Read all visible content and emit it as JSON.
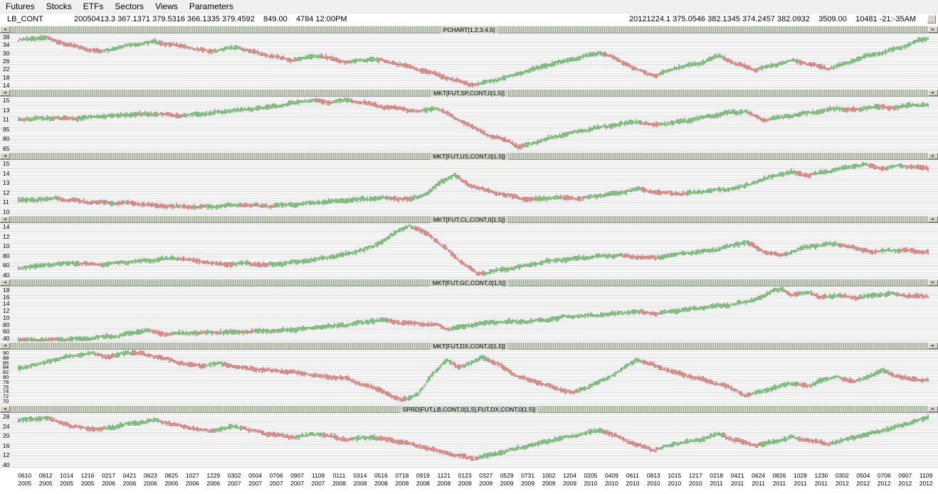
{
  "menu": {
    "items": [
      "Futures",
      "Stocks",
      "ETFs",
      "Sectors",
      "Views",
      "Parameters"
    ]
  },
  "info_bar": {
    "symbol": "LB_CONT",
    "left_text": "20050413.3 367.1371 379.5316 366.1335 379.4592    849.00    4784 12:00PM",
    "right_text": "20121224.1 375.0546 382.1345 374.2457 382.0932    3509.00    10481 -21:-35AM"
  },
  "colors": {
    "up": "#128712",
    "down": "#b82820",
    "stripe": "#e4e4e4",
    "titlebar": "#cdd3c7",
    "menu_bg": "#f0f0f0"
  },
  "chart_data": [
    {
      "id": "lb-pchart",
      "type": "line",
      "title": "PCHART[1,2,3,4,5]",
      "ylabels": [
        "38",
        "34",
        "30",
        "26",
        "22",
        "18",
        "14"
      ],
      "ymin": 135,
      "ymax": 395,
      "x": [
        0,
        0.03,
        0.06,
        0.09,
        0.12,
        0.15,
        0.18,
        0.21,
        0.24,
        0.27,
        0.3,
        0.33,
        0.36,
        0.39,
        0.42,
        0.45,
        0.48,
        0.5,
        0.53,
        0.56,
        0.59,
        0.62,
        0.64,
        0.66,
        0.68,
        0.7,
        0.72,
        0.75,
        0.77,
        0.79,
        0.81,
        0.83,
        0.85,
        0.87,
        0.89,
        0.91,
        0.93,
        0.95,
        0.97,
        0.99,
        1.0
      ],
      "v": [
        365,
        375,
        335,
        310,
        340,
        355,
        335,
        310,
        330,
        295,
        270,
        290,
        260,
        275,
        250,
        215,
        175,
        152,
        180,
        220,
        255,
        285,
        305,
        270,
        225,
        195,
        230,
        255,
        290,
        250,
        225,
        245,
        270,
        250,
        230,
        255,
        285,
        305,
        330,
        360,
        372
      ]
    },
    {
      "id": "sp",
      "type": "line",
      "title": "MKT[FUT,SP,CONT,0[1,5]]",
      "ylabels": [
        "15",
        "13",
        "11",
        "95",
        "80",
        "65"
      ],
      "ymin": 600,
      "ymax": 1600,
      "x": [
        0,
        0.03,
        0.06,
        0.09,
        0.12,
        0.15,
        0.18,
        0.21,
        0.24,
        0.27,
        0.3,
        0.32,
        0.34,
        0.36,
        0.38,
        0.4,
        0.42,
        0.44,
        0.46,
        0.48,
        0.5,
        0.52,
        0.54,
        0.55,
        0.57,
        0.59,
        0.61,
        0.63,
        0.66,
        0.68,
        0.7,
        0.72,
        0.74,
        0.76,
        0.78,
        0.8,
        0.82,
        0.84,
        0.86,
        0.88,
        0.9,
        0.92,
        0.94,
        0.96,
        0.98,
        1.0
      ],
      "v": [
        1190,
        1215,
        1205,
        1245,
        1275,
        1290,
        1255,
        1305,
        1355,
        1400,
        1480,
        1540,
        1500,
        1535,
        1490,
        1420,
        1380,
        1330,
        1390,
        1220,
        1050,
        880,
        800,
        680,
        790,
        880,
        950,
        1020,
        1100,
        1150,
        1090,
        1130,
        1180,
        1250,
        1310,
        1330,
        1180,
        1230,
        1290,
        1330,
        1390,
        1360,
        1420,
        1400,
        1440,
        1455
      ]
    },
    {
      "id": "us",
      "type": "line",
      "title": "MKT[FUT,US,CONT,0[1,5]]",
      "ylabels": [
        "15",
        "14",
        "13",
        "12",
        "11",
        "10"
      ],
      "ymin": 98,
      "ymax": 157,
      "x": [
        0,
        0.04,
        0.08,
        0.12,
        0.16,
        0.2,
        0.24,
        0.28,
        0.32,
        0.36,
        0.4,
        0.43,
        0.45,
        0.465,
        0.48,
        0.49,
        0.51,
        0.53,
        0.56,
        0.59,
        0.62,
        0.64,
        0.66,
        0.68,
        0.7,
        0.73,
        0.76,
        0.79,
        0.81,
        0.83,
        0.85,
        0.87,
        0.89,
        0.91,
        0.93,
        0.95,
        0.97,
        1.0
      ],
      "v": [
        114,
        116,
        112,
        111,
        108,
        107,
        109,
        108,
        111,
        114,
        117,
        115,
        121,
        134,
        141,
        133,
        126,
        121,
        115,
        117,
        116,
        119,
        122,
        126,
        123,
        121,
        124,
        127,
        133,
        140,
        144,
        141,
        145,
        149,
        152,
        148,
        151,
        148
      ]
    },
    {
      "id": "cl",
      "type": "line",
      "title": "MKT[FUT,CL,CONT,0[1,5]]",
      "ylabels": [
        "14",
        "12",
        "10",
        "80",
        "60",
        "40"
      ],
      "ymin": 28,
      "ymax": 152,
      "x": [
        0,
        0.03,
        0.06,
        0.09,
        0.12,
        0.15,
        0.17,
        0.19,
        0.21,
        0.23,
        0.25,
        0.27,
        0.29,
        0.31,
        0.33,
        0.35,
        0.37,
        0.39,
        0.41,
        0.43,
        0.45,
        0.47,
        0.49,
        0.505,
        0.52,
        0.54,
        0.56,
        0.58,
        0.6,
        0.62,
        0.64,
        0.66,
        0.68,
        0.7,
        0.72,
        0.74,
        0.76,
        0.78,
        0.8,
        0.82,
        0.84,
        0.86,
        0.88,
        0.9,
        0.92,
        0.94,
        0.96,
        0.98,
        1.0
      ],
      "v": [
        52,
        58,
        63,
        60,
        65,
        70,
        74,
        70,
        63,
        60,
        62,
        58,
        62,
        66,
        72,
        78,
        88,
        100,
        125,
        147,
        128,
        95,
        60,
        38,
        44,
        50,
        58,
        66,
        71,
        74,
        78,
        80,
        76,
        74,
        82,
        86,
        90,
        100,
        110,
        88,
        80,
        96,
        103,
        106,
        96,
        88,
        92,
        90,
        88
      ]
    },
    {
      "id": "gc",
      "type": "line",
      "title": "MKT[FUT,GC,CONT,0[1,5]]",
      "ylabels": [
        "18",
        "16",
        "14",
        "12",
        "10",
        "80",
        "60",
        "40"
      ],
      "ymin": 380,
      "ymax": 1950,
      "x": [
        0,
        0.04,
        0.07,
        0.09,
        0.11,
        0.13,
        0.14,
        0.16,
        0.19,
        0.22,
        0.25,
        0.28,
        0.31,
        0.33,
        0.35,
        0.37,
        0.39,
        0.4,
        0.42,
        0.44,
        0.46,
        0.47,
        0.49,
        0.51,
        0.53,
        0.56,
        0.58,
        0.6,
        0.62,
        0.64,
        0.66,
        0.68,
        0.7,
        0.72,
        0.74,
        0.76,
        0.78,
        0.8,
        0.82,
        0.83,
        0.84,
        0.85,
        0.86,
        0.87,
        0.88,
        0.9,
        0.92,
        0.94,
        0.96,
        0.98,
        1.0
      ],
      "v": [
        432,
        448,
        470,
        520,
        555,
        655,
        715,
        600,
        635,
        650,
        665,
        690,
        745,
        800,
        830,
        900,
        975,
        1010,
        930,
        905,
        865,
        740,
        820,
        905,
        935,
        965,
        1000,
        1090,
        1115,
        1145,
        1200,
        1230,
        1180,
        1245,
        1305,
        1380,
        1420,
        1510,
        1680,
        1840,
        1880,
        1700,
        1760,
        1790,
        1640,
        1700,
        1630,
        1700,
        1750,
        1690,
        1665
      ]
    },
    {
      "id": "dx",
      "type": "line",
      "title": "MKT[FUT,DX,CONT,0[1,5]]",
      "ylabels": [
        "90",
        "88",
        "86",
        "84",
        "82",
        "80",
        "78",
        "76",
        "74",
        "72",
        "70"
      ],
      "ymin": 69.5,
      "ymax": 92,
      "x": [
        0,
        0.02,
        0.04,
        0.06,
        0.08,
        0.1,
        0.12,
        0.14,
        0.16,
        0.18,
        0.2,
        0.22,
        0.25,
        0.28,
        0.31,
        0.34,
        0.36,
        0.38,
        0.4,
        0.41,
        0.42,
        0.44,
        0.455,
        0.47,
        0.485,
        0.5,
        0.51,
        0.53,
        0.55,
        0.57,
        0.59,
        0.61,
        0.63,
        0.65,
        0.665,
        0.68,
        0.7,
        0.72,
        0.74,
        0.76,
        0.78,
        0.8,
        0.81,
        0.83,
        0.85,
        0.87,
        0.88,
        0.9,
        0.92,
        0.94,
        0.95,
        0.96,
        0.98,
        1.0
      ],
      "v": [
        84.5,
        86,
        88,
        89.5,
        90.5,
        89,
        91,
        90,
        88.5,
        86.5,
        85.5,
        86.5,
        84.5,
        83.5,
        82.5,
        81,
        80.5,
        77.5,
        75.5,
        73,
        71.5,
        74,
        82,
        87.5,
        85,
        87,
        89,
        85.5,
        81,
        79,
        76.5,
        74.5,
        77.5,
        81,
        84.5,
        88,
        85.5,
        83,
        81,
        79,
        77,
        73.5,
        74.5,
        76.5,
        78.5,
        77,
        79.5,
        81,
        79,
        82,
        83.5,
        82,
        80,
        79.8
      ]
    },
    {
      "id": "sprd-lb-dx",
      "type": "line",
      "title": "SPRD[FUT,LB,CONT,0[1,5],FUT,DX,CONT,0[1,5]]",
      "ylabels": [
        "28",
        "24",
        "20",
        "16",
        "12",
        "40"
      ],
      "ymin": 70,
      "ymax": 310,
      "x": [
        0,
        0.03,
        0.06,
        0.09,
        0.12,
        0.15,
        0.18,
        0.21,
        0.24,
        0.27,
        0.3,
        0.33,
        0.36,
        0.39,
        0.42,
        0.45,
        0.48,
        0.5,
        0.53,
        0.56,
        0.59,
        0.62,
        0.64,
        0.66,
        0.68,
        0.7,
        0.72,
        0.75,
        0.77,
        0.79,
        0.81,
        0.83,
        0.85,
        0.87,
        0.89,
        0.91,
        0.93,
        0.95,
        0.97,
        0.99,
        1.0
      ],
      "v": [
        278,
        290,
        252,
        238,
        262,
        278,
        252,
        232,
        252,
        222,
        205,
        220,
        195,
        205,
        185,
        158,
        128,
        112,
        138,
        168,
        195,
        220,
        235,
        205,
        170,
        150,
        175,
        195,
        220,
        190,
        170,
        185,
        205,
        190,
        175,
        195,
        215,
        235,
        255,
        280,
        290
      ]
    }
  ],
  "x_axis": {
    "columns": [
      {
        "date": "0610",
        "year": "2005"
      },
      {
        "date": "0812",
        "year": "2005"
      },
      {
        "date": "1014",
        "year": "2005"
      },
      {
        "date": "1216",
        "year": "2005"
      },
      {
        "date": "0217",
        "year": "2006"
      },
      {
        "date": "0421",
        "year": "2006"
      },
      {
        "date": "0623",
        "year": "2006"
      },
      {
        "date": "0825",
        "year": "2006"
      },
      {
        "date": "1027",
        "year": "2006"
      },
      {
        "date": "1229",
        "year": "2006"
      },
      {
        "date": "0302",
        "year": "2007"
      },
      {
        "date": "0504",
        "year": "2007"
      },
      {
        "date": "0706",
        "year": "2007"
      },
      {
        "date": "0907",
        "year": "2007"
      },
      {
        "date": "1109",
        "year": "2007"
      },
      {
        "date": "0111",
        "year": "2008"
      },
      {
        "date": "0314",
        "year": "2008"
      },
      {
        "date": "0516",
        "year": "2008"
      },
      {
        "date": "0718",
        "year": "2008"
      },
      {
        "date": "0919",
        "year": "2008"
      },
      {
        "date": "1121",
        "year": "2008"
      },
      {
        "date": "0123",
        "year": "2009"
      },
      {
        "date": "0327",
        "year": "2009"
      },
      {
        "date": "0529",
        "year": "2009"
      },
      {
        "date": "0731",
        "year": "2009"
      },
      {
        "date": "1002",
        "year": "2009"
      },
      {
        "date": "1204",
        "year": "2009"
      },
      {
        "date": "0205",
        "year": "2010"
      },
      {
        "date": "0409",
        "year": "2010"
      },
      {
        "date": "0611",
        "year": "2010"
      },
      {
        "date": "0813",
        "year": "2010"
      },
      {
        "date": "1015",
        "year": "2010"
      },
      {
        "date": "1217",
        "year": "2010"
      },
      {
        "date": "0218",
        "year": "2011"
      },
      {
        "date": "0421",
        "year": "2011"
      },
      {
        "date": "0624",
        "year": "2011"
      },
      {
        "date": "0826",
        "year": "2011"
      },
      {
        "date": "1028",
        "year": "2011"
      },
      {
        "date": "1230",
        "year": "2011"
      },
      {
        "date": "0302",
        "year": "2012"
      },
      {
        "date": "0504",
        "year": "2012"
      },
      {
        "date": "0706",
        "year": "2012"
      },
      {
        "date": "0907",
        "year": "2012"
      },
      {
        "date": "1109",
        "year": "2012"
      }
    ]
  }
}
